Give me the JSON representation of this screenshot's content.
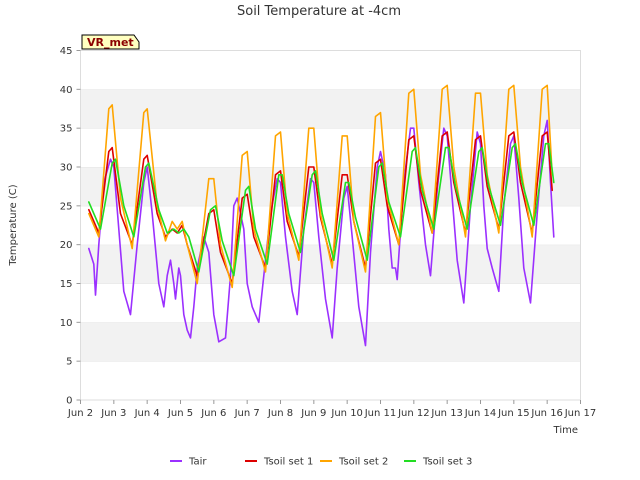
{
  "chart_data": {
    "type": "line",
    "title": "Soil Temperature at -4cm",
    "xlabel": "Time",
    "ylabel": "Temperature (C)",
    "badge": "VR_met",
    "ylim": [
      0,
      45
    ],
    "y_ticks": [
      0,
      5,
      10,
      15,
      20,
      25,
      30,
      35,
      40,
      45
    ],
    "xlim": [
      2,
      17
    ],
    "x_ticks": [
      2,
      3,
      4,
      5,
      6,
      7,
      8,
      9,
      10,
      11,
      12,
      13,
      14,
      15,
      16,
      17
    ],
    "x_tick_labels": [
      "Jun 2",
      "Jun 3",
      "Jun 4",
      "Jun 5",
      "Jun 6",
      "Jun 7",
      "Jun 8",
      "Jun 9",
      "Jun 10",
      "Jun 11",
      "Jun 12",
      "Jun 13",
      "Jun 14",
      "Jun 15",
      "Jun 16",
      "Jun 17"
    ],
    "grid": "horizontal bands",
    "legend_position": "bottom",
    "series": [
      {
        "name": "Tair",
        "color": "#9b30ff",
        "x": [
          2.25,
          2.4,
          2.45,
          2.55,
          2.7,
          2.9,
          3.0,
          3.15,
          3.3,
          3.5,
          3.7,
          3.9,
          4.0,
          4.15,
          4.35,
          4.5,
          4.6,
          4.7,
          4.8,
          4.85,
          4.95,
          5.0,
          5.1,
          5.2,
          5.3,
          5.4,
          5.5,
          5.7,
          5.85,
          6.0,
          6.15,
          6.35,
          6.5,
          6.6,
          6.7,
          6.9,
          7.0,
          7.15,
          7.35,
          7.5,
          7.7,
          7.9,
          8.0,
          8.15,
          8.35,
          8.5,
          8.7,
          8.9,
          9.0,
          9.15,
          9.35,
          9.55,
          9.7,
          9.9,
          10.0,
          10.15,
          10.35,
          10.55,
          10.7,
          10.9,
          11.0,
          11.15,
          11.25,
          11.35,
          11.45,
          11.5,
          11.7,
          11.9,
          12.0,
          12.15,
          12.35,
          12.5,
          12.7,
          12.9,
          13.0,
          13.15,
          13.3,
          13.5,
          13.7,
          13.9,
          14.0,
          14.1,
          14.2,
          14.35,
          14.55,
          14.7,
          14.9,
          15.0,
          15.15,
          15.3,
          15.5,
          15.7,
          15.9,
          16.0,
          16.1,
          16.2
        ],
        "values": [
          19.5,
          17.5,
          13.5,
          20,
          28,
          31,
          30,
          22,
          14,
          11,
          20,
          28,
          30,
          24,
          15,
          12,
          16,
          18,
          15,
          13,
          17,
          16,
          11,
          9,
          8,
          12,
          17,
          21,
          19,
          11,
          7.5,
          8,
          16,
          25,
          26,
          22,
          15,
          12,
          10,
          16,
          24,
          28.5,
          28,
          21,
          14,
          11,
          22,
          28.5,
          28,
          21,
          13,
          8,
          17,
          26,
          27.5,
          21,
          12,
          7,
          19,
          30,
          32,
          29,
          22,
          17,
          17,
          15.5,
          28,
          35,
          35,
          28,
          20,
          16,
          27,
          35,
          34,
          26,
          18,
          12.5,
          25,
          34.5,
          33,
          25,
          19.5,
          17,
          14,
          25,
          33,
          34,
          26,
          17,
          12.5,
          24,
          34,
          36,
          28,
          21
        ]
      },
      {
        "name": "Tsoil set 1",
        "color": "#dd0000",
        "x": [
          2.25,
          2.55,
          2.85,
          2.95,
          3.2,
          3.55,
          3.9,
          4.0,
          4.3,
          4.55,
          4.75,
          4.9,
          5.05,
          5.2,
          5.5,
          5.85,
          6.0,
          6.2,
          6.55,
          6.85,
          7.0,
          7.2,
          7.55,
          7.85,
          8.0,
          8.2,
          8.55,
          8.85,
          9.0,
          9.2,
          9.55,
          9.85,
          10.0,
          10.2,
          10.55,
          10.85,
          11.0,
          11.2,
          11.55,
          11.85,
          12.0,
          12.2,
          12.55,
          12.85,
          13.0,
          13.2,
          13.55,
          13.85,
          14.0,
          14.2,
          14.55,
          14.85,
          15.0,
          15.2,
          15.55,
          15.85,
          16.0,
          16.15
        ],
        "values": [
          24.5,
          21.5,
          32,
          32.5,
          24,
          20,
          31,
          31.5,
          24,
          21,
          22,
          21.5,
          22.5,
          20,
          16,
          24,
          24.5,
          19,
          15,
          26,
          26.5,
          21,
          17,
          29,
          29.5,
          23,
          18.5,
          30,
          30,
          23.5,
          17.5,
          29,
          29,
          23,
          17,
          30.5,
          31,
          25,
          20,
          33.5,
          34,
          27,
          21.5,
          34,
          34.5,
          28,
          21.5,
          33.5,
          34,
          27.5,
          22,
          34,
          34.5,
          28,
          21.5,
          34,
          34.5,
          27
        ]
      },
      {
        "name": "Tsoil set 2",
        "color": "#ffa500",
        "x": [
          2.25,
          2.55,
          2.85,
          2.95,
          3.2,
          3.55,
          3.9,
          4.0,
          4.3,
          4.55,
          4.75,
          4.9,
          5.05,
          5.2,
          5.5,
          5.85,
          6.0,
          6.2,
          6.55,
          6.85,
          7.0,
          7.2,
          7.55,
          7.85,
          8.0,
          8.2,
          8.55,
          8.85,
          9.0,
          9.2,
          9.55,
          9.85,
          10.0,
          10.2,
          10.55,
          10.85,
          11.0,
          11.2,
          11.55,
          11.85,
          12.0,
          12.2,
          12.55,
          12.85,
          13.0,
          13.2,
          13.55,
          13.85,
          14.0,
          14.2,
          14.55,
          14.85,
          15.0,
          15.2,
          15.55,
          15.85,
          16.0,
          16.15
        ],
        "values": [
          24,
          21,
          37.5,
          38,
          26,
          19.5,
          37,
          37.5,
          25,
          20.5,
          23,
          22,
          23,
          20,
          15,
          28.5,
          28.5,
          20,
          14.5,
          31.5,
          32,
          22,
          16.5,
          34,
          34.5,
          24,
          18,
          35,
          35,
          24,
          17,
          34,
          34,
          23,
          16.5,
          36.5,
          37,
          26,
          20,
          39.5,
          40,
          29,
          21.5,
          40,
          40.5,
          30,
          21,
          39.5,
          39.5,
          29,
          21.5,
          40,
          40.5,
          30,
          21,
          40,
          40.5,
          29
        ]
      },
      {
        "name": "Tsoil set 3",
        "color": "#22dd22",
        "x": [
          2.25,
          2.6,
          2.95,
          3.05,
          3.3,
          3.6,
          3.95,
          4.05,
          4.35,
          4.6,
          4.8,
          4.95,
          5.1,
          5.25,
          5.55,
          5.9,
          6.05,
          6.25,
          6.6,
          6.95,
          7.05,
          7.25,
          7.6,
          7.95,
          8.05,
          8.25,
          8.6,
          8.95,
          9.05,
          9.25,
          9.6,
          9.95,
          10.05,
          10.25,
          10.6,
          10.95,
          11.05,
          11.25,
          11.6,
          11.95,
          12.05,
          12.25,
          12.6,
          12.95,
          13.05,
          13.25,
          13.6,
          13.95,
          14.05,
          14.25,
          14.6,
          14.95,
          15.05,
          15.25,
          15.6,
          15.95,
          16.05,
          16.2
        ],
        "values": [
          25.5,
          22,
          30.5,
          31,
          25,
          21,
          30,
          30.5,
          24.5,
          21.5,
          22,
          21.5,
          22,
          21,
          16.5,
          24.5,
          25,
          20.5,
          16,
          27,
          27.5,
          22,
          17.5,
          29,
          29,
          24,
          19,
          29,
          29.5,
          24,
          18,
          28,
          28,
          23.5,
          18,
          30,
          30.5,
          25.5,
          21,
          32,
          32.5,
          27,
          22,
          32.5,
          32.5,
          27.5,
          22,
          32,
          32.5,
          27.5,
          22.5,
          32.5,
          33,
          28,
          22.5,
          33,
          33,
          28
        ]
      }
    ]
  }
}
